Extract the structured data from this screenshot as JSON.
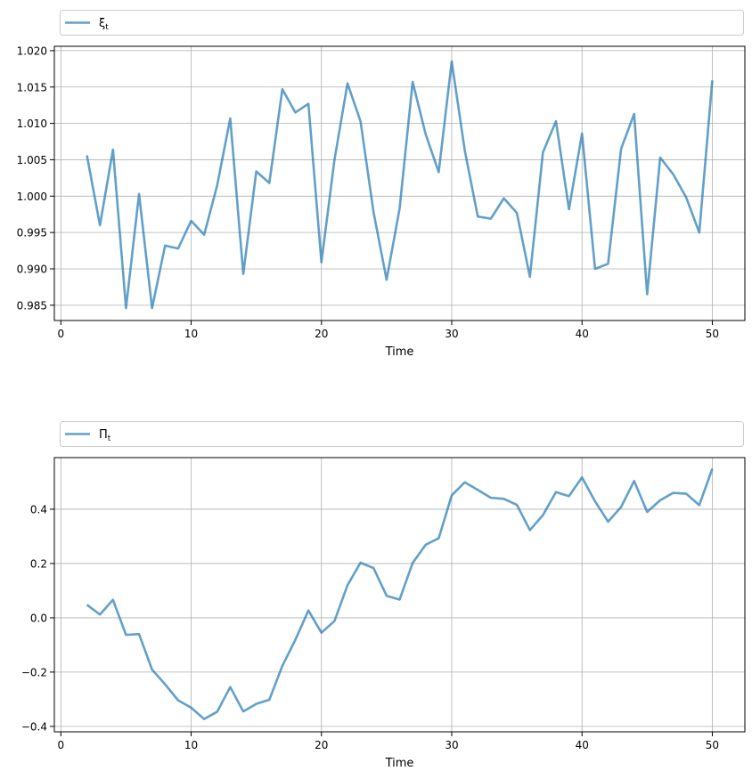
{
  "chart_data": [
    {
      "type": "line",
      "xlabel": "Time",
      "ylabel": "",
      "xlim": [
        -0.5,
        52.5
      ],
      "ylim": [
        0.9829,
        1.0206
      ],
      "xticks": [
        0,
        10,
        20,
        30,
        40,
        50
      ],
      "yticks": [
        0.985,
        0.99,
        0.995,
        1.0,
        1.005,
        1.01,
        1.015,
        1.02
      ],
      "ytick_decimals": 3,
      "grid": true,
      "legend_position": "top, above plot",
      "series": [
        {
          "name_display": "ξ_t",
          "color": "#1f77b4",
          "x": [
            2,
            3,
            4,
            5,
            6,
            7,
            8,
            9,
            10,
            11,
            12,
            13,
            14,
            15,
            16,
            17,
            18,
            19,
            20,
            21,
            22,
            23,
            24,
            25,
            26,
            27,
            28,
            29,
            30,
            31,
            32,
            33,
            34,
            35,
            36,
            37,
            38,
            39,
            40,
            41,
            42,
            43,
            44,
            45,
            46,
            47,
            48,
            49,
            50
          ],
          "values": [
            1.0056,
            0.996,
            1.0064,
            0.9846,
            1.0003,
            0.9846,
            0.9932,
            0.9928,
            0.9966,
            0.9947,
            1.0015,
            1.0107,
            0.9893,
            1.0034,
            1.0018,
            1.0147,
            1.0115,
            1.0127,
            0.9909,
            1.005,
            1.0155,
            1.0103,
            0.9978,
            0.9885,
            0.9983,
            1.0157,
            1.0085,
            1.0033,
            1.0185,
            1.0063,
            0.9972,
            0.9969,
            0.9997,
            0.9977,
            0.9889,
            1.006,
            1.0103,
            0.9982,
            1.0086,
            0.99,
            0.9907,
            1.0065,
            1.0113,
            0.9865,
            1.0053,
            1.003,
            0.9998,
            0.995,
            1.0159
          ]
        }
      ]
    },
    {
      "type": "line",
      "xlabel": "Time",
      "ylabel": "",
      "xlim": [
        -0.5,
        52.5
      ],
      "ylim": [
        -0.42,
        0.59
      ],
      "xticks": [
        0,
        10,
        20,
        30,
        40,
        50
      ],
      "yticks": [
        -0.4,
        -0.2,
        0.0,
        0.2,
        0.4
      ],
      "ytick_decimals": 1,
      "grid": true,
      "legend_position": "top, above plot",
      "series": [
        {
          "name_display": "Π_t",
          "color": "#1f77b4",
          "x": [
            2,
            3,
            4,
            5,
            6,
            7,
            8,
            9,
            10,
            11,
            12,
            13,
            14,
            15,
            16,
            17,
            18,
            19,
            20,
            21,
            22,
            23,
            24,
            25,
            26,
            27,
            28,
            29,
            30,
            31,
            32,
            33,
            34,
            35,
            36,
            37,
            38,
            39,
            40,
            41,
            42,
            43,
            44,
            45,
            46,
            47,
            48,
            49,
            50
          ],
          "values": [
            0.048,
            0.012,
            0.066,
            -0.063,
            -0.06,
            -0.191,
            -0.245,
            -0.304,
            -0.331,
            -0.373,
            -0.346,
            -0.255,
            -0.345,
            -0.317,
            -0.302,
            -0.177,
            -0.081,
            0.027,
            -0.055,
            -0.012,
            0.12,
            0.203,
            0.183,
            0.081,
            0.067,
            0.202,
            0.269,
            0.293,
            0.451,
            0.499,
            0.471,
            0.442,
            0.438,
            0.416,
            0.323,
            0.378,
            0.463,
            0.448,
            0.517,
            0.429,
            0.354,
            0.408,
            0.504,
            0.39,
            0.433,
            0.46,
            0.457,
            0.415,
            0.549
          ]
        }
      ]
    }
  ]
}
